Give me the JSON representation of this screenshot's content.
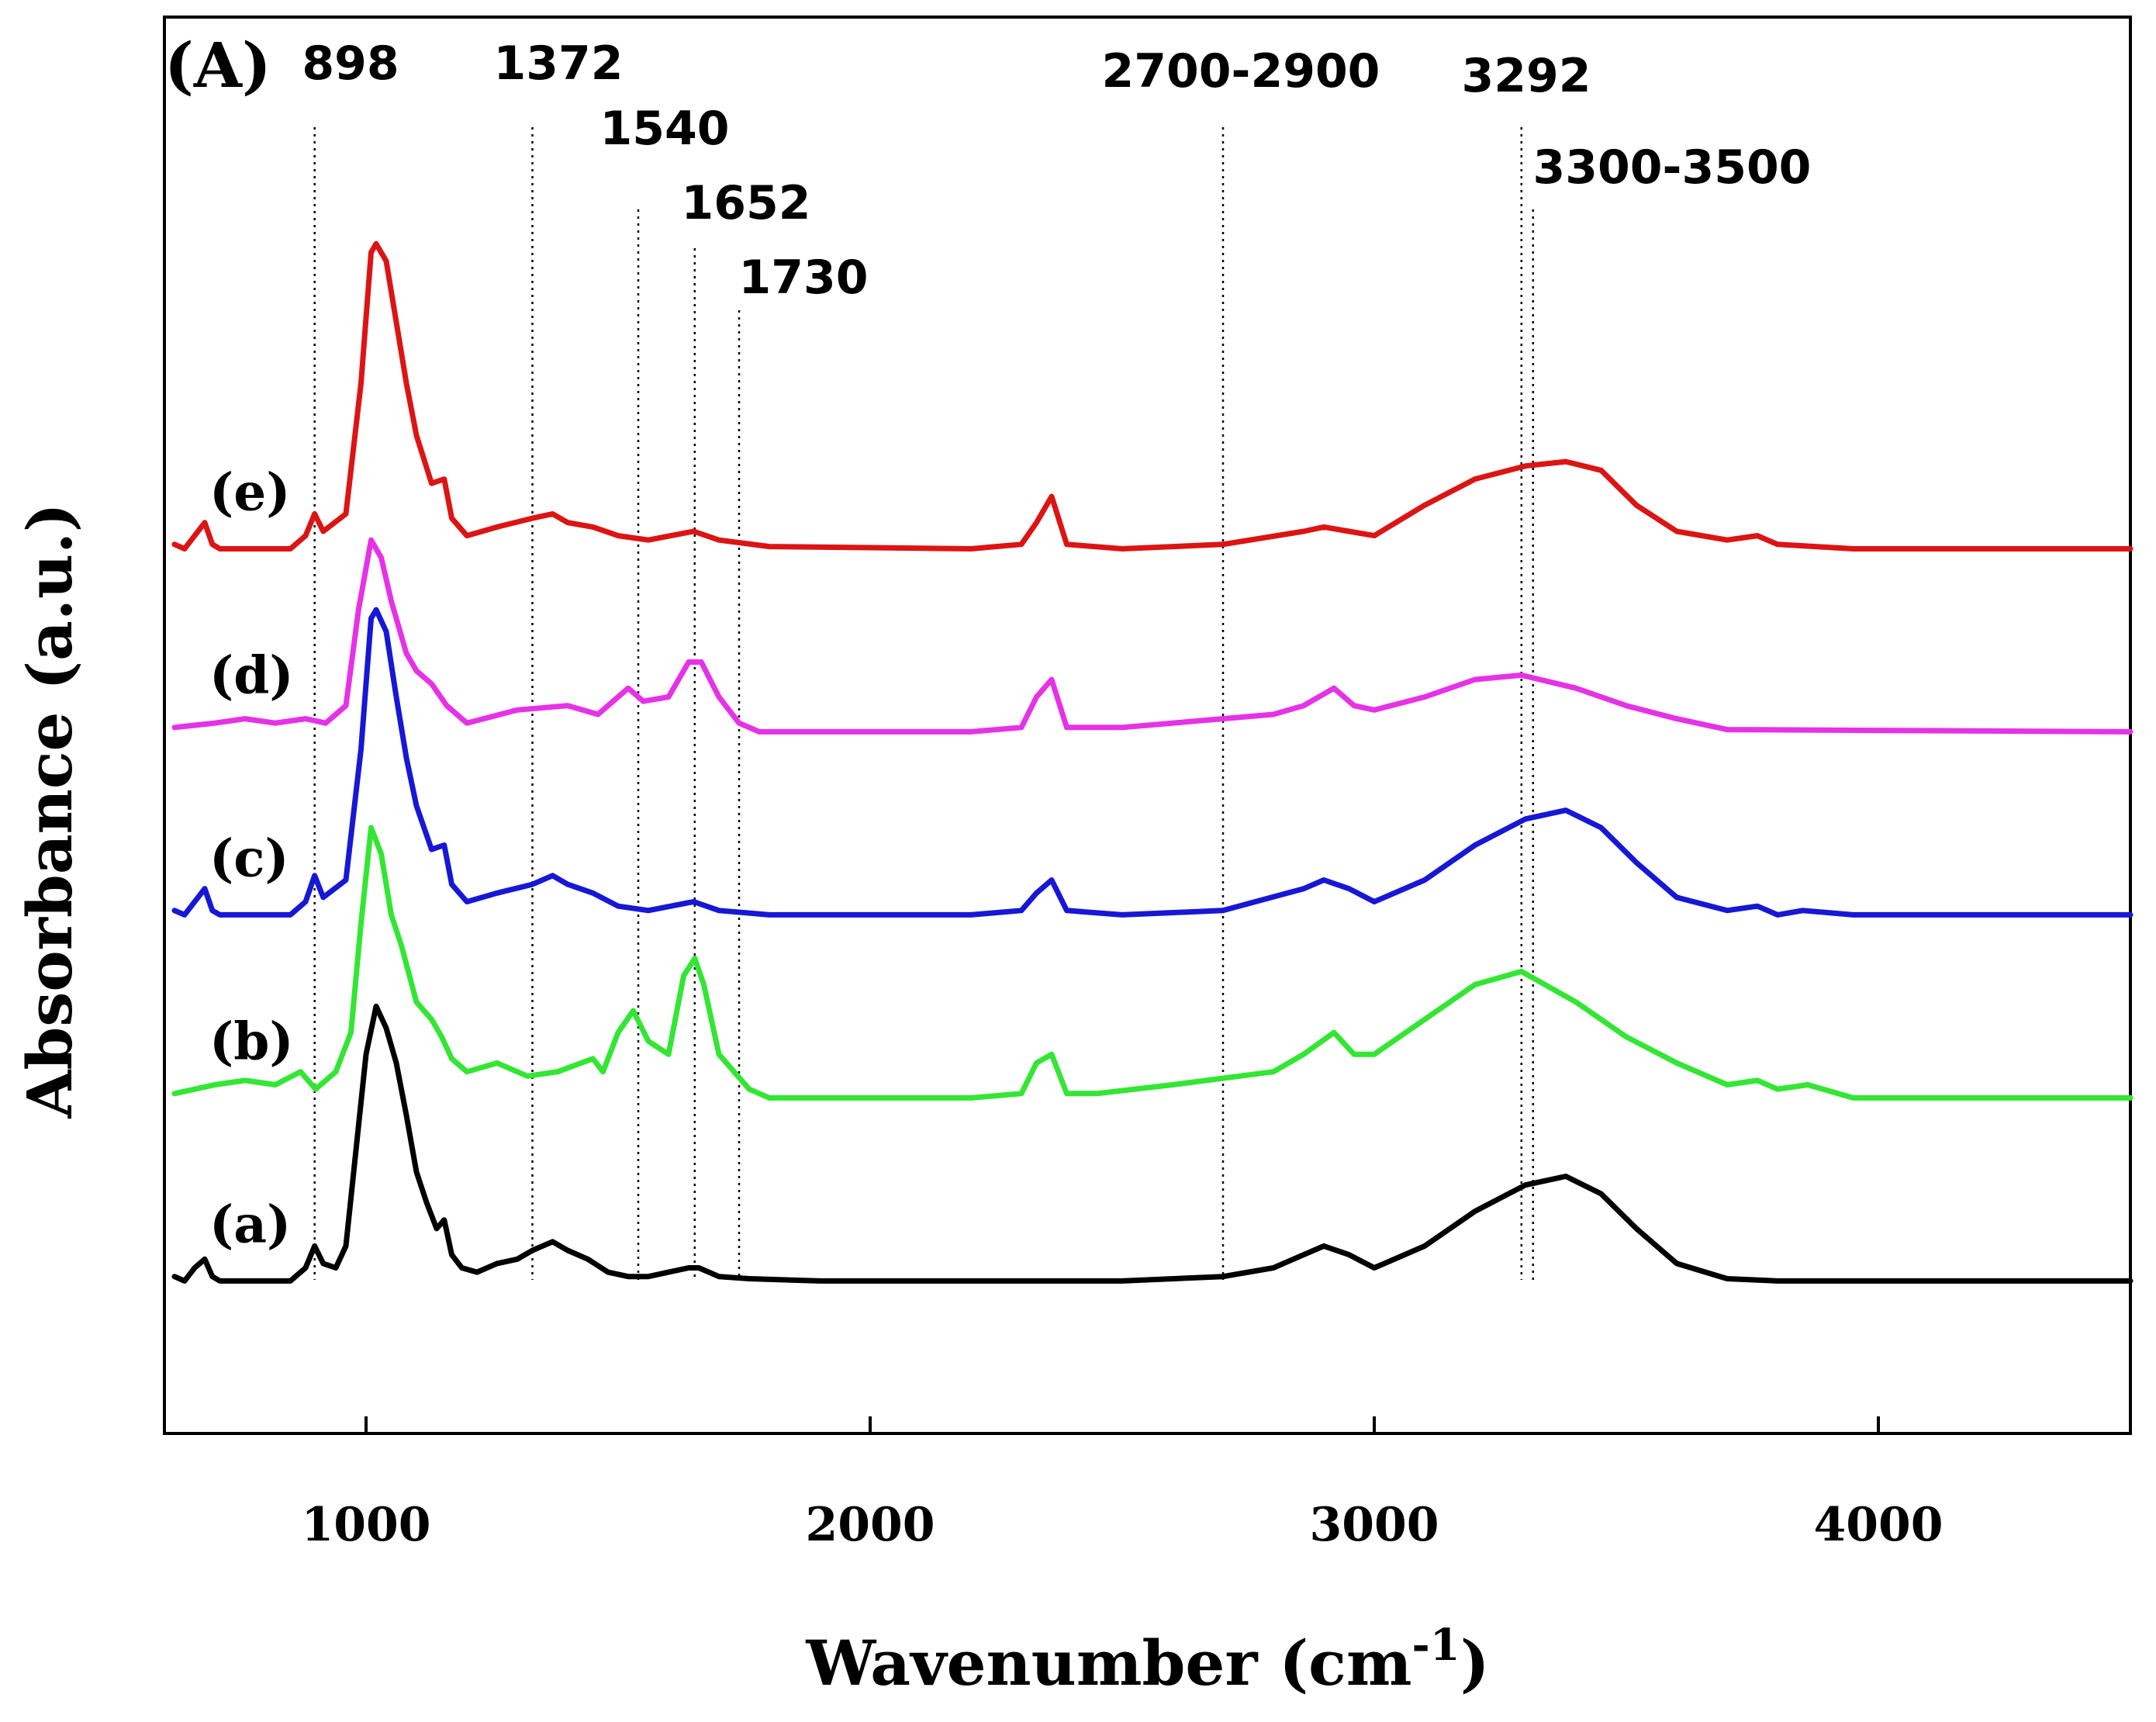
{
  "chart_data": {
    "type": "line",
    "panel_label": "(A)",
    "xlabel": "Wavenumber (cm",
    "xlabel_sup": "-1",
    "xlabel_close": ")",
    "ylabel": "Absorbance (a.u.)",
    "xlim": [
      600,
      4500
    ],
    "ylim": [
      -3.5,
      29
    ],
    "x_ticks": [
      1000,
      2000,
      3000,
      4000
    ],
    "x_tick_labels": [
      "1000",
      "2000",
      "3000",
      "4000"
    ],
    "y_ticks_shown": false,
    "grid": false,
    "annotations": [
      {
        "label": "898",
        "x": [
          898
        ]
      },
      {
        "label": "1372",
        "x": [
          1330
        ]
      },
      {
        "label": "1540",
        "x": [
          1540
        ]
      },
      {
        "label": "1652",
        "x": [
          1652
        ]
      },
      {
        "label": "1730",
        "x": [
          1740
        ]
      },
      {
        "label": "2700-2900",
        "x": [
          2700
        ]
      },
      {
        "label": "3292",
        "x": [
          3292
        ]
      },
      {
        "label": "3300-3500",
        "x": [
          3315
        ]
      }
    ],
    "series": [
      {
        "name": "(a)",
        "color": "#000000",
        "offset": 0,
        "points": [
          [
            620,
            0.1
          ],
          [
            640,
            0.0
          ],
          [
            660,
            0.3
          ],
          [
            680,
            0.5
          ],
          [
            695,
            0.1
          ],
          [
            710,
            0.0
          ],
          [
            740,
            0.0
          ],
          [
            800,
            0.0
          ],
          [
            850,
            0.0
          ],
          [
            880,
            0.3
          ],
          [
            898,
            0.8
          ],
          [
            915,
            0.4
          ],
          [
            940,
            0.3
          ],
          [
            960,
            0.8
          ],
          [
            980,
            3.0
          ],
          [
            1000,
            5.2
          ],
          [
            1020,
            6.3
          ],
          [
            1040,
            5.8
          ],
          [
            1060,
            5.0
          ],
          [
            1080,
            3.8
          ],
          [
            1100,
            2.5
          ],
          [
            1120,
            1.8
          ],
          [
            1140,
            1.2
          ],
          [
            1155,
            1.4
          ],
          [
            1170,
            0.6
          ],
          [
            1190,
            0.3
          ],
          [
            1220,
            0.2
          ],
          [
            1260,
            0.4
          ],
          [
            1300,
            0.5
          ],
          [
            1330,
            0.7
          ],
          [
            1370,
            0.9
          ],
          [
            1400,
            0.7
          ],
          [
            1440,
            0.5
          ],
          [
            1480,
            0.2
          ],
          [
            1520,
            0.1
          ],
          [
            1560,
            0.1
          ],
          [
            1600,
            0.2
          ],
          [
            1640,
            0.3
          ],
          [
            1660,
            0.3
          ],
          [
            1700,
            0.1
          ],
          [
            1760,
            0.05
          ],
          [
            1900,
            0.0
          ],
          [
            2200,
            0.0
          ],
          [
            2500,
            0.0
          ],
          [
            2700,
            0.1
          ],
          [
            2800,
            0.3
          ],
          [
            2860,
            0.6
          ],
          [
            2900,
            0.8
          ],
          [
            2950,
            0.6
          ],
          [
            3000,
            0.3
          ],
          [
            3100,
            0.8
          ],
          [
            3200,
            1.6
          ],
          [
            3300,
            2.2
          ],
          [
            3380,
            2.4
          ],
          [
            3450,
            2.0
          ],
          [
            3520,
            1.2
          ],
          [
            3600,
            0.4
          ],
          [
            3700,
            0.05
          ],
          [
            3800,
            0.0
          ],
          [
            4000,
            0.0
          ],
          [
            4500,
            0.0
          ]
        ]
      },
      {
        "name": "(b)",
        "color": "#33E633",
        "offset": 4.2,
        "points": [
          [
            620,
            0.1
          ],
          [
            700,
            0.3
          ],
          [
            760,
            0.4
          ],
          [
            820,
            0.3
          ],
          [
            870,
            0.6
          ],
          [
            900,
            0.2
          ],
          [
            940,
            0.6
          ],
          [
            970,
            1.5
          ],
          [
            990,
            4.0
          ],
          [
            1010,
            6.2
          ],
          [
            1030,
            5.6
          ],
          [
            1050,
            4.2
          ],
          [
            1070,
            3.5
          ],
          [
            1100,
            2.2
          ],
          [
            1130,
            1.8
          ],
          [
            1150,
            1.4
          ],
          [
            1170,
            0.9
          ],
          [
            1200,
            0.6
          ],
          [
            1260,
            0.8
          ],
          [
            1320,
            0.5
          ],
          [
            1380,
            0.6
          ],
          [
            1450,
            0.9
          ],
          [
            1470,
            0.6
          ],
          [
            1500,
            1.5
          ],
          [
            1530,
            2.0
          ],
          [
            1560,
            1.3
          ],
          [
            1600,
            1.0
          ],
          [
            1630,
            2.8
          ],
          [
            1652,
            3.2
          ],
          [
            1670,
            2.6
          ],
          [
            1700,
            1.0
          ],
          [
            1730,
            0.6
          ],
          [
            1760,
            0.2
          ],
          [
            1800,
            0.0
          ],
          [
            2000,
            0.0
          ],
          [
            2200,
            0.0
          ],
          [
            2300,
            0.1
          ],
          [
            2330,
            0.8
          ],
          [
            2360,
            1.0
          ],
          [
            2390,
            0.1
          ],
          [
            2450,
            0.1
          ],
          [
            2600,
            0.3
          ],
          [
            2800,
            0.6
          ],
          [
            2860,
            1.0
          ],
          [
            2920,
            1.5
          ],
          [
            2960,
            1.0
          ],
          [
            3000,
            1.0
          ],
          [
            3100,
            1.8
          ],
          [
            3200,
            2.6
          ],
          [
            3292,
            2.9
          ],
          [
            3400,
            2.2
          ],
          [
            3500,
            1.4
          ],
          [
            3600,
            0.8
          ],
          [
            3700,
            0.3
          ],
          [
            3760,
            0.4
          ],
          [
            3800,
            0.2
          ],
          [
            3860,
            0.3
          ],
          [
            3950,
            0.0
          ],
          [
            4500,
            0.0
          ]
        ]
      },
      {
        "name": "(c)",
        "color": "#1717D6",
        "offset": 8.4,
        "points": [
          [
            620,
            0.1
          ],
          [
            640,
            0.0
          ],
          [
            660,
            0.3
          ],
          [
            680,
            0.6
          ],
          [
            695,
            0.1
          ],
          [
            710,
            0.0
          ],
          [
            850,
            0.0
          ],
          [
            880,
            0.3
          ],
          [
            898,
            0.9
          ],
          [
            915,
            0.4
          ],
          [
            960,
            0.8
          ],
          [
            990,
            3.8
          ],
          [
            1010,
            6.8
          ],
          [
            1020,
            7.0
          ],
          [
            1040,
            6.5
          ],
          [
            1060,
            5.0
          ],
          [
            1080,
            3.6
          ],
          [
            1100,
            2.5
          ],
          [
            1130,
            1.5
          ],
          [
            1155,
            1.6
          ],
          [
            1170,
            0.7
          ],
          [
            1200,
            0.3
          ],
          [
            1260,
            0.5
          ],
          [
            1330,
            0.7
          ],
          [
            1370,
            0.9
          ],
          [
            1400,
            0.7
          ],
          [
            1450,
            0.5
          ],
          [
            1500,
            0.2
          ],
          [
            1560,
            0.1
          ],
          [
            1650,
            0.3
          ],
          [
            1700,
            0.1
          ],
          [
            1800,
            0.0
          ],
          [
            2200,
            0.0
          ],
          [
            2300,
            0.1
          ],
          [
            2330,
            0.5
          ],
          [
            2360,
            0.8
          ],
          [
            2390,
            0.1
          ],
          [
            2500,
            0.0
          ],
          [
            2700,
            0.1
          ],
          [
            2860,
            0.6
          ],
          [
            2900,
            0.8
          ],
          [
            2950,
            0.6
          ],
          [
            3000,
            0.3
          ],
          [
            3100,
            0.8
          ],
          [
            3200,
            1.6
          ],
          [
            3300,
            2.2
          ],
          [
            3380,
            2.4
          ],
          [
            3450,
            2.0
          ],
          [
            3520,
            1.2
          ],
          [
            3600,
            0.4
          ],
          [
            3700,
            0.1
          ],
          [
            3760,
            0.2
          ],
          [
            3800,
            0.0
          ],
          [
            3850,
            0.1
          ],
          [
            3950,
            0.0
          ],
          [
            4500,
            0.0
          ]
        ]
      },
      {
        "name": "(d)",
        "color": "#E632E6",
        "offset": 12.6,
        "points": [
          [
            620,
            0.1
          ],
          [
            700,
            0.2
          ],
          [
            760,
            0.3
          ],
          [
            820,
            0.2
          ],
          [
            880,
            0.3
          ],
          [
            920,
            0.2
          ],
          [
            960,
            0.6
          ],
          [
            985,
            2.8
          ],
          [
            1010,
            4.4
          ],
          [
            1030,
            4.0
          ],
          [
            1050,
            3.0
          ],
          [
            1080,
            1.8
          ],
          [
            1100,
            1.4
          ],
          [
            1130,
            1.1
          ],
          [
            1160,
            0.6
          ],
          [
            1200,
            0.2
          ],
          [
            1300,
            0.5
          ],
          [
            1400,
            0.6
          ],
          [
            1460,
            0.4
          ],
          [
            1480,
            0.6
          ],
          [
            1520,
            1.0
          ],
          [
            1550,
            0.7
          ],
          [
            1600,
            0.8
          ],
          [
            1640,
            1.6
          ],
          [
            1665,
            1.6
          ],
          [
            1700,
            0.8
          ],
          [
            1740,
            0.2
          ],
          [
            1780,
            0.0
          ],
          [
            2200,
            0.0
          ],
          [
            2300,
            0.1
          ],
          [
            2330,
            0.8
          ],
          [
            2360,
            1.2
          ],
          [
            2390,
            0.1
          ],
          [
            2500,
            0.1
          ],
          [
            2800,
            0.4
          ],
          [
            2860,
            0.6
          ],
          [
            2920,
            1.0
          ],
          [
            2960,
            0.6
          ],
          [
            3000,
            0.5
          ],
          [
            3100,
            0.8
          ],
          [
            3200,
            1.2
          ],
          [
            3292,
            1.3
          ],
          [
            3400,
            1.0
          ],
          [
            3500,
            0.6
          ],
          [
            3600,
            0.3
          ],
          [
            3700,
            0.05
          ],
          [
            4500,
            0.0
          ]
        ]
      },
      {
        "name": "(e)",
        "color": "#DC1414",
        "offset": 16.8,
        "points": [
          [
            620,
            0.1
          ],
          [
            640,
            0.0
          ],
          [
            660,
            0.3
          ],
          [
            680,
            0.6
          ],
          [
            695,
            0.1
          ],
          [
            710,
            0.0
          ],
          [
            850,
            0.0
          ],
          [
            880,
            0.3
          ],
          [
            898,
            0.8
          ],
          [
            915,
            0.4
          ],
          [
            960,
            0.8
          ],
          [
            990,
            3.8
          ],
          [
            1010,
            6.8
          ],
          [
            1020,
            7.0
          ],
          [
            1040,
            6.6
          ],
          [
            1060,
            5.2
          ],
          [
            1080,
            3.8
          ],
          [
            1100,
            2.6
          ],
          [
            1130,
            1.5
          ],
          [
            1155,
            1.6
          ],
          [
            1170,
            0.7
          ],
          [
            1200,
            0.3
          ],
          [
            1260,
            0.5
          ],
          [
            1330,
            0.7
          ],
          [
            1370,
            0.8
          ],
          [
            1400,
            0.6
          ],
          [
            1450,
            0.5
          ],
          [
            1500,
            0.3
          ],
          [
            1560,
            0.2
          ],
          [
            1650,
            0.4
          ],
          [
            1700,
            0.2
          ],
          [
            1800,
            0.05
          ],
          [
            2200,
            0.0
          ],
          [
            2300,
            0.1
          ],
          [
            2330,
            0.6
          ],
          [
            2360,
            1.2
          ],
          [
            2390,
            0.1
          ],
          [
            2500,
            0.0
          ],
          [
            2700,
            0.1
          ],
          [
            2860,
            0.4
          ],
          [
            2900,
            0.5
          ],
          [
            2950,
            0.4
          ],
          [
            3000,
            0.3
          ],
          [
            3100,
            1.0
          ],
          [
            3200,
            1.6
          ],
          [
            3300,
            1.9
          ],
          [
            3380,
            2.0
          ],
          [
            3450,
            1.8
          ],
          [
            3520,
            1.0
          ],
          [
            3600,
            0.4
          ],
          [
            3700,
            0.2
          ],
          [
            3760,
            0.3
          ],
          [
            3800,
            0.1
          ],
          [
            3950,
            0.0
          ],
          [
            4500,
            0.0
          ]
        ]
      }
    ]
  }
}
